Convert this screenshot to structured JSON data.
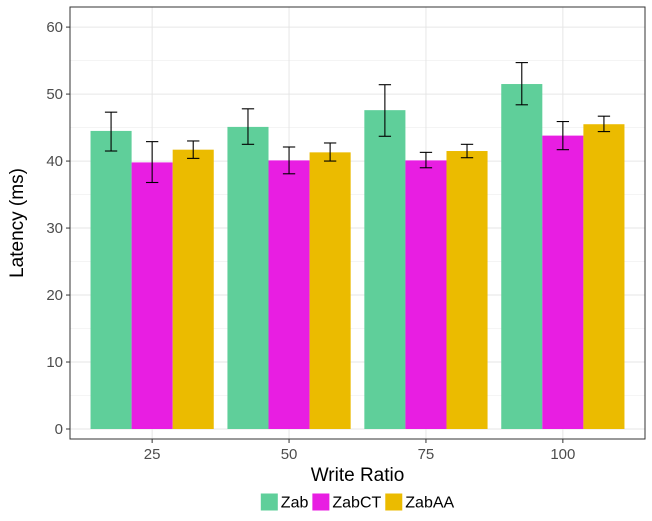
{
  "chart_data": {
    "type": "bar",
    "xlabel": "Write Ratio",
    "ylabel": "Latency (ms)",
    "categories": [
      "25",
      "50",
      "75",
      "100"
    ],
    "ylim": [
      0,
      63
    ],
    "yticks": [
      0,
      10,
      20,
      30,
      40,
      50,
      60
    ],
    "ytick_labels": [
      "0",
      "10",
      "20",
      "30",
      "40",
      "50",
      "60"
    ],
    "grid": true,
    "legend_position": "bottom",
    "series": [
      {
        "name": "Zab",
        "color": "#5fcf9a",
        "values": [
          44.5,
          45.1,
          47.6,
          51.5
        ],
        "error_low": [
          41.5,
          42.5,
          43.7,
          48.4
        ],
        "error_high": [
          47.3,
          47.8,
          51.4,
          54.7
        ]
      },
      {
        "name": "ZabCT",
        "color": "#e81ee2",
        "values": [
          39.8,
          40.1,
          40.1,
          43.8
        ],
        "error_low": [
          36.8,
          38.1,
          39.0,
          41.7
        ],
        "error_high": [
          42.9,
          42.1,
          41.3,
          45.9
        ]
      },
      {
        "name": "ZabAA",
        "color": "#ebbb00",
        "values": [
          41.7,
          41.3,
          41.5,
          45.5
        ],
        "error_low": [
          40.4,
          40.0,
          40.5,
          44.4
        ],
        "error_high": [
          43.0,
          42.7,
          42.5,
          46.7
        ]
      }
    ]
  }
}
